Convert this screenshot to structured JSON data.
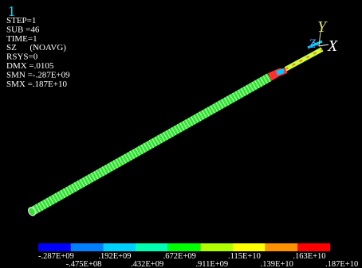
{
  "window_number": "1",
  "info": [
    "STEP=1",
    "SUB =46",
    "TIME=1",
    "SZ      (NOAVG)",
    "RSYS=0",
    "DMX =.0105",
    "SMN =-.287E+09",
    "SMX =.187E+10"
  ],
  "triad": {
    "y": "Y",
    "z": "Z",
    "x": "X"
  },
  "legend": {
    "colors": [
      "#0000ff",
      "#0080ff",
      "#00d0ff",
      "#00ffb0",
      "#00ff00",
      "#b0ff00",
      "#ffff00",
      "#ff9000",
      "#ff0000"
    ],
    "labels": [
      "-.287E+09",
      "-.475E+08",
      ".192E+09",
      ".432E+09",
      ".672E+09",
      ".911E+09",
      ".115E+10",
      ".139E+10",
      ".163E+10",
      ".187E+10"
    ]
  }
}
